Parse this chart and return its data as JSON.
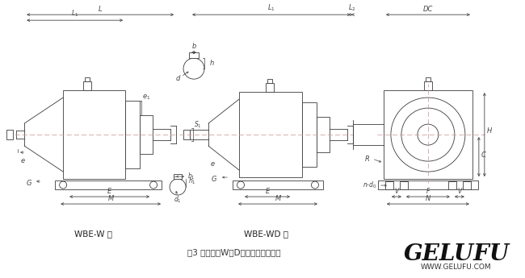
{
  "bg_color": "#ffffff",
  "line_color": "#3a3a3a",
  "dim_color": "#444444",
  "center_line_color": "#cc9999",
  "title": "图3 双级卧式W（D）型减速器的外形",
  "label1": "WBE-W 型",
  "label2": "WBE-WD 型",
  "watermark1": "GELUFU",
  "watermark2": "WWW.GELUFU.COM",
  "fig_width": 6.5,
  "fig_height": 3.45
}
